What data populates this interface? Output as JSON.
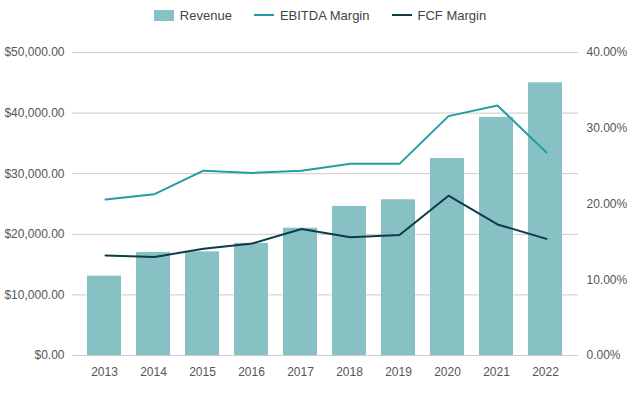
{
  "chart_data": {
    "type": "bar",
    "categories": [
      "2013",
      "2014",
      "2015",
      "2016",
      "2017",
      "2018",
      "2019",
      "2020",
      "2021",
      "2022"
    ],
    "series": [
      {
        "name": "Revenue",
        "type": "bar",
        "color": "#88c1c3",
        "values": [
          13100,
          17000,
          17100,
          18500,
          21000,
          24600,
          25700,
          32500,
          39300,
          45000
        ]
      },
      {
        "name": "EBITDA Margin",
        "type": "line",
        "axis": "y2",
        "color": "#1f9ea3",
        "values": [
          20.6,
          21.3,
          24.4,
          24.1,
          24.4,
          25.3,
          25.3,
          31.6,
          33.0,
          26.8
        ]
      },
      {
        "name": "FCF Margin",
        "type": "line",
        "axis": "y2",
        "color": "#0d3b47",
        "values": [
          13.2,
          13.0,
          14.1,
          14.8,
          16.7,
          15.6,
          15.9,
          21.1,
          17.3,
          15.4
        ]
      }
    ],
    "ylim": [
      0,
      50000
    ],
    "yticks": [
      {
        "value": 0,
        "label": "$0.00"
      },
      {
        "value": 10000,
        "label": "$10,000.00"
      },
      {
        "value": 20000,
        "label": "$20,000.00"
      },
      {
        "value": 30000,
        "label": "$30,000.00"
      },
      {
        "value": 40000,
        "label": "$40,000.00"
      },
      {
        "value": 50000,
        "label": "$50,000.00"
      }
    ],
    "y2lim": [
      0,
      40
    ],
    "y2ticks": [
      {
        "value": 0,
        "label": "0.00%"
      },
      {
        "value": 10,
        "label": "10.00%"
      },
      {
        "value": 20,
        "label": "20.00%"
      },
      {
        "value": 30,
        "label": "30.00%"
      },
      {
        "value": 40,
        "label": "40.00%"
      }
    ],
    "grid": true,
    "legend": "top"
  }
}
